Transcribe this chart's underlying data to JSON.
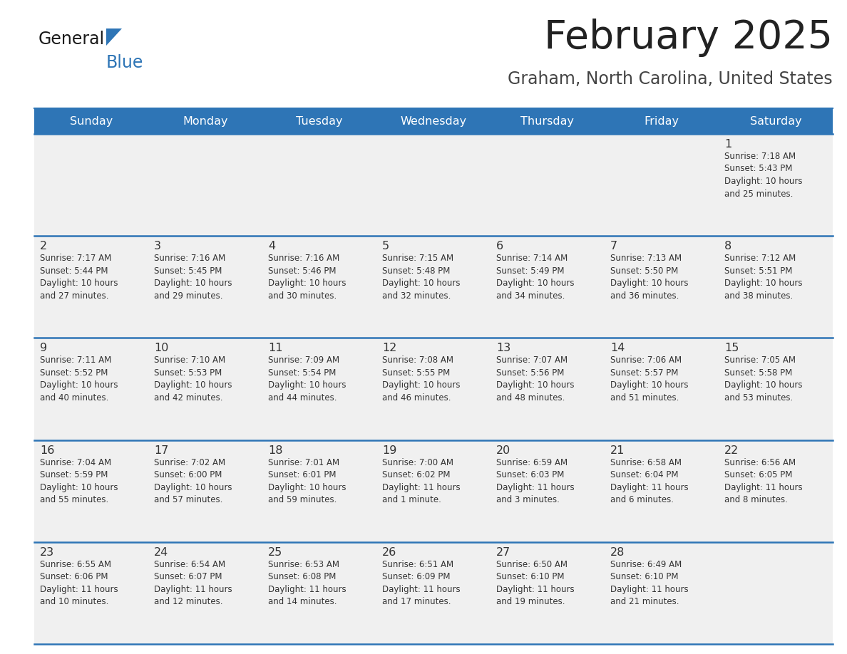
{
  "title": "February 2025",
  "subtitle": "Graham, North Carolina, United States",
  "header_color": "#2E75B6",
  "header_text_color": "#FFFFFF",
  "day_names": [
    "Sunday",
    "Monday",
    "Tuesday",
    "Wednesday",
    "Thursday",
    "Friday",
    "Saturday"
  ],
  "title_color": "#222222",
  "subtitle_color": "#444444",
  "cell_bg": "#F0F0F0",
  "cell_border_color": "#2E75B6",
  "day_number_color": "#333333",
  "info_color": "#333333",
  "logo_general_color": "#1a1a1a",
  "logo_blue_color": "#2E75B6",
  "days": [
    {
      "date": 1,
      "row": 0,
      "col": 6,
      "sunrise": "7:18 AM",
      "sunset": "5:43 PM",
      "daylight": "10 hours and 25 minutes."
    },
    {
      "date": 2,
      "row": 1,
      "col": 0,
      "sunrise": "7:17 AM",
      "sunset": "5:44 PM",
      "daylight": "10 hours and 27 minutes."
    },
    {
      "date": 3,
      "row": 1,
      "col": 1,
      "sunrise": "7:16 AM",
      "sunset": "5:45 PM",
      "daylight": "10 hours and 29 minutes."
    },
    {
      "date": 4,
      "row": 1,
      "col": 2,
      "sunrise": "7:16 AM",
      "sunset": "5:46 PM",
      "daylight": "10 hours and 30 minutes."
    },
    {
      "date": 5,
      "row": 1,
      "col": 3,
      "sunrise": "7:15 AM",
      "sunset": "5:48 PM",
      "daylight": "10 hours and 32 minutes."
    },
    {
      "date": 6,
      "row": 1,
      "col": 4,
      "sunrise": "7:14 AM",
      "sunset": "5:49 PM",
      "daylight": "10 hours and 34 minutes."
    },
    {
      "date": 7,
      "row": 1,
      "col": 5,
      "sunrise": "7:13 AM",
      "sunset": "5:50 PM",
      "daylight": "10 hours and 36 minutes."
    },
    {
      "date": 8,
      "row": 1,
      "col": 6,
      "sunrise": "7:12 AM",
      "sunset": "5:51 PM",
      "daylight": "10 hours and 38 minutes."
    },
    {
      "date": 9,
      "row": 2,
      "col": 0,
      "sunrise": "7:11 AM",
      "sunset": "5:52 PM",
      "daylight": "10 hours and 40 minutes."
    },
    {
      "date": 10,
      "row": 2,
      "col": 1,
      "sunrise": "7:10 AM",
      "sunset": "5:53 PM",
      "daylight": "10 hours and 42 minutes."
    },
    {
      "date": 11,
      "row": 2,
      "col": 2,
      "sunrise": "7:09 AM",
      "sunset": "5:54 PM",
      "daylight": "10 hours and 44 minutes."
    },
    {
      "date": 12,
      "row": 2,
      "col": 3,
      "sunrise": "7:08 AM",
      "sunset": "5:55 PM",
      "daylight": "10 hours and 46 minutes."
    },
    {
      "date": 13,
      "row": 2,
      "col": 4,
      "sunrise": "7:07 AM",
      "sunset": "5:56 PM",
      "daylight": "10 hours and 48 minutes."
    },
    {
      "date": 14,
      "row": 2,
      "col": 5,
      "sunrise": "7:06 AM",
      "sunset": "5:57 PM",
      "daylight": "10 hours and 51 minutes."
    },
    {
      "date": 15,
      "row": 2,
      "col": 6,
      "sunrise": "7:05 AM",
      "sunset": "5:58 PM",
      "daylight": "10 hours and 53 minutes."
    },
    {
      "date": 16,
      "row": 3,
      "col": 0,
      "sunrise": "7:04 AM",
      "sunset": "5:59 PM",
      "daylight": "10 hours and 55 minutes."
    },
    {
      "date": 17,
      "row": 3,
      "col": 1,
      "sunrise": "7:02 AM",
      "sunset": "6:00 PM",
      "daylight": "10 hours and 57 minutes."
    },
    {
      "date": 18,
      "row": 3,
      "col": 2,
      "sunrise": "7:01 AM",
      "sunset": "6:01 PM",
      "daylight": "10 hours and 59 minutes."
    },
    {
      "date": 19,
      "row": 3,
      "col": 3,
      "sunrise": "7:00 AM",
      "sunset": "6:02 PM",
      "daylight": "11 hours and 1 minute."
    },
    {
      "date": 20,
      "row": 3,
      "col": 4,
      "sunrise": "6:59 AM",
      "sunset": "6:03 PM",
      "daylight": "11 hours and 3 minutes."
    },
    {
      "date": 21,
      "row": 3,
      "col": 5,
      "sunrise": "6:58 AM",
      "sunset": "6:04 PM",
      "daylight": "11 hours and 6 minutes."
    },
    {
      "date": 22,
      "row": 3,
      "col": 6,
      "sunrise": "6:56 AM",
      "sunset": "6:05 PM",
      "daylight": "11 hours and 8 minutes."
    },
    {
      "date": 23,
      "row": 4,
      "col": 0,
      "sunrise": "6:55 AM",
      "sunset": "6:06 PM",
      "daylight": "11 hours and 10 minutes."
    },
    {
      "date": 24,
      "row": 4,
      "col": 1,
      "sunrise": "6:54 AM",
      "sunset": "6:07 PM",
      "daylight": "11 hours and 12 minutes."
    },
    {
      "date": 25,
      "row": 4,
      "col": 2,
      "sunrise": "6:53 AM",
      "sunset": "6:08 PM",
      "daylight": "11 hours and 14 minutes."
    },
    {
      "date": 26,
      "row": 4,
      "col": 3,
      "sunrise": "6:51 AM",
      "sunset": "6:09 PM",
      "daylight": "11 hours and 17 minutes."
    },
    {
      "date": 27,
      "row": 4,
      "col": 4,
      "sunrise": "6:50 AM",
      "sunset": "6:10 PM",
      "daylight": "11 hours and 19 minutes."
    },
    {
      "date": 28,
      "row": 4,
      "col": 5,
      "sunrise": "6:49 AM",
      "sunset": "6:10 PM",
      "daylight": "11 hours and 21 minutes."
    }
  ]
}
